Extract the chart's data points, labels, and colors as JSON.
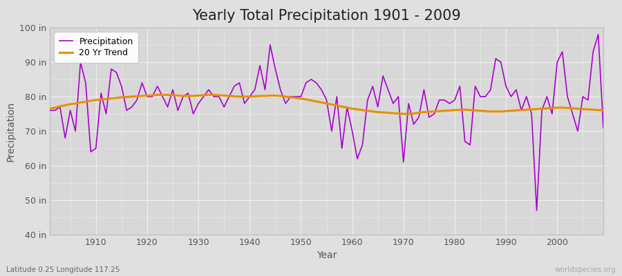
{
  "title": "Yearly Total Precipitation 1901 - 2009",
  "xlabel": "Year",
  "ylabel": "Precipitation",
  "subtitle": "Latitude 0.25 Longitude 117.25",
  "watermark": "worldspecies.org",
  "ylim": [
    40,
    100
  ],
  "yticks": [
    40,
    50,
    60,
    70,
    80,
    90,
    100
  ],
  "ytick_labels": [
    "40 in",
    "50 in",
    "60 in",
    "70 in",
    "80 in",
    "90 in",
    "100 in"
  ],
  "years": [
    1901,
    1902,
    1903,
    1904,
    1905,
    1906,
    1907,
    1908,
    1909,
    1910,
    1911,
    1912,
    1913,
    1914,
    1915,
    1916,
    1917,
    1918,
    1919,
    1920,
    1921,
    1922,
    1923,
    1924,
    1925,
    1926,
    1927,
    1928,
    1929,
    1930,
    1931,
    1932,
    1933,
    1934,
    1935,
    1936,
    1937,
    1938,
    1939,
    1940,
    1941,
    1942,
    1943,
    1944,
    1945,
    1946,
    1947,
    1948,
    1949,
    1950,
    1951,
    1952,
    1953,
    1954,
    1955,
    1956,
    1957,
    1958,
    1959,
    1960,
    1961,
    1962,
    1963,
    1964,
    1965,
    1966,
    1967,
    1968,
    1969,
    1970,
    1971,
    1972,
    1973,
    1974,
    1975,
    1976,
    1977,
    1978,
    1979,
    1980,
    1981,
    1982,
    1983,
    1984,
    1985,
    1986,
    1987,
    1988,
    1989,
    1990,
    1991,
    1992,
    1993,
    1994,
    1995,
    1996,
    1997,
    1998,
    1999,
    2000,
    2001,
    2002,
    2003,
    2004,
    2005,
    2006,
    2007,
    2008,
    2009
  ],
  "precip": [
    76,
    76,
    77,
    68,
    76,
    70,
    90,
    84,
    64,
    65,
    81,
    75,
    88,
    87,
    83,
    76,
    77,
    79,
    84,
    80,
    80,
    83,
    80,
    77,
    82,
    76,
    80,
    81,
    75,
    78,
    80,
    82,
    80,
    80,
    77,
    80,
    83,
    84,
    78,
    80,
    82,
    89,
    82,
    95,
    88,
    82,
    78,
    80,
    80,
    80,
    84,
    85,
    84,
    82,
    79,
    70,
    80,
    65,
    77,
    70,
    62,
    66,
    79,
    83,
    77,
    86,
    82,
    78,
    80,
    61,
    78,
    72,
    74,
    82,
    74,
    75,
    79,
    79,
    78,
    79,
    83,
    67,
    66,
    83,
    80,
    80,
    82,
    91,
    90,
    83,
    80,
    82,
    76,
    80,
    75,
    47,
    76,
    80,
    75,
    90,
    93,
    80,
    75,
    70,
    80,
    79,
    93,
    98,
    71
  ],
  "trend": [
    76.5,
    76.8,
    77.2,
    77.5,
    77.8,
    78.0,
    78.3,
    78.5,
    78.8,
    79.0,
    79.2,
    79.3,
    79.5,
    79.6,
    79.8,
    79.9,
    80.0,
    80.1,
    80.2,
    80.3,
    80.4,
    80.5,
    80.5,
    80.5,
    80.4,
    80.3,
    80.2,
    80.2,
    80.2,
    80.3,
    80.4,
    80.5,
    80.5,
    80.4,
    80.3,
    80.2,
    80.1,
    80.0,
    80.0,
    80.0,
    80.1,
    80.2,
    80.2,
    80.3,
    80.3,
    80.2,
    80.0,
    79.8,
    79.6,
    79.4,
    79.2,
    78.9,
    78.6,
    78.3,
    78.0,
    77.7,
    77.4,
    77.1,
    76.8,
    76.5,
    76.3,
    76.1,
    75.9,
    75.7,
    75.5,
    75.4,
    75.3,
    75.2,
    75.1,
    75.0,
    75.0,
    75.1,
    75.3,
    75.5,
    75.6,
    75.7,
    75.8,
    75.9,
    76.0,
    76.1,
    76.2,
    76.2,
    76.1,
    76.0,
    75.9,
    75.8,
    75.7,
    75.7,
    75.7,
    75.8,
    75.9,
    76.0,
    76.1,
    76.2,
    76.3,
    76.4,
    76.5,
    76.6,
    76.7,
    76.8,
    76.8,
    76.7,
    76.6,
    76.5,
    76.4,
    76.3,
    76.2,
    76.1,
    76.0
  ],
  "precip_color": "#AA00CC",
  "trend_color": "#E89000",
  "bg_color": "#E0E0E0",
  "plot_bg_color": "#D8D8D8",
  "grid_color": "#F0F0F0",
  "title_fontsize": 15,
  "axis_label_fontsize": 10,
  "tick_fontsize": 9,
  "legend_fontsize": 9
}
